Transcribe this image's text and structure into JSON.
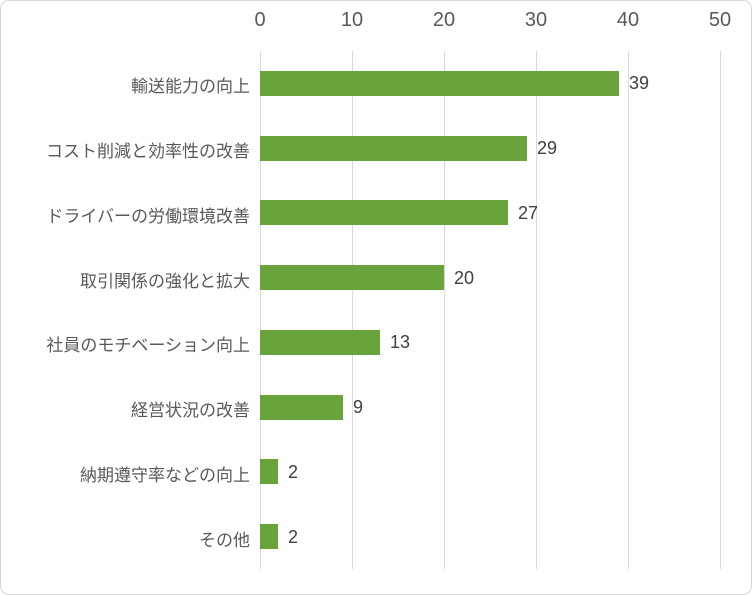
{
  "chart_data": {
    "type": "bar",
    "orientation": "horizontal",
    "title": "",
    "xlabel": "",
    "ylabel": "",
    "categories": [
      "輸送能力の向上",
      "コスト削減と効率性の改善",
      "ドライバーの労働環境改善",
      "取引関係の強化と拡大",
      "社員のモチベーション向上",
      "経営状況の改善",
      "納期遵守率などの向上",
      "その他"
    ],
    "values": [
      39,
      29,
      27,
      20,
      13,
      9,
      2,
      2
    ],
    "data_labels": [
      "39",
      "29",
      "27",
      "20",
      "13",
      "9",
      "2",
      "2"
    ],
    "xlim": [
      0,
      50
    ],
    "x_ticks": [
      0,
      10,
      20,
      30,
      40,
      50
    ],
    "x_tick_labels": [
      "0",
      "10",
      "20",
      "30",
      "40",
      "50"
    ],
    "axis_position": "top",
    "grid": "vertical-on",
    "legend": "none",
    "bar_color": "#69a33c",
    "gridline_color": "#d9d9d9",
    "tick_label_color": "#595959",
    "category_label_color": "#595959",
    "value_label_color": "#404040",
    "background_color": "#ffffff",
    "border_color": "#d7d7d7"
  }
}
